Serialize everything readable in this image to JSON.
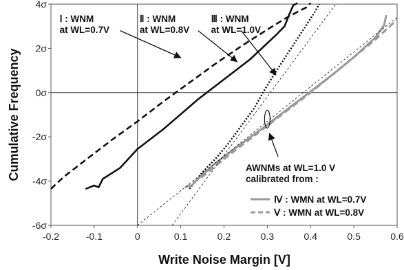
{
  "chart_data": {
    "type": "line",
    "title": "",
    "xlabel": "Write Noise Margin [V]",
    "ylabel": "Cumulative Frequency",
    "xlim": [
      -0.2,
      0.6
    ],
    "ylim": [
      -6,
      4
    ],
    "x_ticks": [
      -0.2,
      -0.1,
      0,
      0.1,
      0.2,
      0.3,
      0.4,
      0.5,
      0.6
    ],
    "x_tick_labels": [
      "-0.2",
      "-0.1",
      "0",
      "0.1",
      "0.2",
      "0.3",
      "0.4",
      "0.5",
      "0.6"
    ],
    "y_ticks": [
      -6,
      -4,
      -2,
      0,
      2,
      4
    ],
    "y_tick_labels": [
      "-6σ",
      "-4σ",
      "-2σ",
      "0σ",
      "2σ",
      "4σ"
    ],
    "grid": false,
    "zero_lines": true,
    "series": [
      {
        "color": "#111111",
        "style": "dashed",
        "width": 2.6,
        "points": [
          [
            -0.2,
            -4.35
          ],
          [
            -0.17,
            -3.8
          ],
          [
            -0.12,
            -3.05
          ],
          [
            -0.06,
            -2.15
          ],
          [
            0.0,
            -1.3
          ],
          [
            0.06,
            -0.4
          ],
          [
            0.12,
            0.45
          ],
          [
            0.18,
            1.3
          ],
          [
            0.24,
            2.1
          ],
          [
            0.3,
            2.85
          ],
          [
            0.35,
            3.45
          ],
          [
            0.39,
            3.85
          ],
          [
            0.4,
            4.05
          ]
        ]
      },
      {
        "color": "#111111",
        "style": "solid",
        "width": 2.6,
        "points": [
          [
            -0.12,
            -4.35
          ],
          [
            -0.1,
            -4.2
          ],
          [
            -0.09,
            -4.28
          ],
          [
            -0.08,
            -3.9
          ],
          [
            -0.04,
            -3.4
          ],
          [
            0.0,
            -2.55
          ],
          [
            0.06,
            -1.65
          ],
          [
            0.14,
            -0.3
          ],
          [
            0.2,
            0.6
          ],
          [
            0.26,
            1.5
          ],
          [
            0.32,
            2.6
          ],
          [
            0.34,
            3.0
          ],
          [
            0.35,
            3.5
          ],
          [
            0.36,
            3.95
          ],
          [
            0.37,
            4.05
          ]
        ]
      },
      {
        "color": "#111111",
        "style": "dotted",
        "width": 2.6,
        "points": [
          [
            0.12,
            -4.35
          ],
          [
            0.15,
            -3.6
          ],
          [
            0.18,
            -3.0
          ],
          [
            0.21,
            -2.3
          ],
          [
            0.24,
            -1.5
          ],
          [
            0.27,
            -0.7
          ],
          [
            0.29,
            0.0
          ],
          [
            0.31,
            0.65
          ],
          [
            0.33,
            1.25
          ],
          [
            0.35,
            1.85
          ],
          [
            0.37,
            2.45
          ],
          [
            0.39,
            3.05
          ],
          [
            0.41,
            3.65
          ],
          [
            0.42,
            4.0
          ]
        ]
      },
      {
        "color": "#999999",
        "style": "solid",
        "width": 3,
        "points": [
          [
            0.12,
            -4.3
          ],
          [
            0.14,
            -3.9
          ],
          [
            0.18,
            -3.2
          ],
          [
            0.22,
            -2.6
          ],
          [
            0.3,
            -1.45
          ],
          [
            0.35,
            -0.7
          ],
          [
            0.4,
            0.05
          ],
          [
            0.45,
            0.8
          ],
          [
            0.5,
            1.6
          ],
          [
            0.55,
            2.5
          ],
          [
            0.57,
            3.05
          ],
          [
            0.575,
            3.5
          ]
        ]
      },
      {
        "color": "#999999",
        "style": "dashed",
        "width": 3,
        "points": [
          [
            0.11,
            -4.3
          ],
          [
            0.15,
            -3.8
          ],
          [
            0.2,
            -3.0
          ],
          [
            0.25,
            -2.25
          ],
          [
            0.3,
            -1.5
          ],
          [
            0.35,
            -0.75
          ],
          [
            0.4,
            0.0
          ],
          [
            0.45,
            0.8
          ],
          [
            0.5,
            1.6
          ],
          [
            0.55,
            2.4
          ],
          [
            0.6,
            3.3
          ]
        ]
      },
      {
        "color": "#111111",
        "style": "thin-dashed",
        "width": 0.8,
        "points": [
          [
            0.0,
            -6.0
          ],
          [
            0.6,
            3.4
          ]
        ]
      },
      {
        "color": "#111111",
        "style": "thin-dashed",
        "width": 0.8,
        "points": [
          [
            0.08,
            -6.0
          ],
          [
            0.46,
            4.05
          ]
        ]
      }
    ],
    "annotations": [
      {
        "lines": [
          "Ⅰ : WNM",
          "at  WL=0.7V"
        ],
        "label_at": [
          -0.18,
          3.2
        ],
        "arrow_from": [
          -0.04,
          2.8
        ],
        "arrow_to": [
          0.1,
          1.58
        ]
      },
      {
        "lines": [
          "Ⅱ : WNM",
          "at  WL=0.8V"
        ],
        "label_at": [
          0.005,
          3.2
        ],
        "arrow_from": [
          0.14,
          2.8
        ],
        "arrow_to": [
          0.23,
          1.4
        ]
      },
      {
        "lines": [
          "Ⅲ : WNM",
          "at  WL=1.0V"
        ],
        "label_at": [
          0.17,
          3.2
        ],
        "arrow_from": [
          0.24,
          2.8
        ],
        "arrow_to": [
          0.32,
          0.8
        ]
      },
      {
        "lines": [
          "AWNMs at WL=1.0 V",
          "calibrated from :"
        ],
        "label_at": [
          0.25,
          -3.55
        ],
        "ellipse_at": [
          0.3,
          -1.2
        ],
        "arrow_from": [
          0.325,
          -2.9
        ],
        "arrow_to": [
          0.305,
          -1.85
        ]
      }
    ],
    "legend": {
      "placement": "bottom-right",
      "entries": [
        {
          "label": "Ⅳ : WMN at WL=0.7V",
          "color": "#999999",
          "style": "solid"
        },
        {
          "label": "Ⅴ : WMN at WL=0.8V",
          "color": "#999999",
          "style": "dashed"
        }
      ]
    }
  }
}
